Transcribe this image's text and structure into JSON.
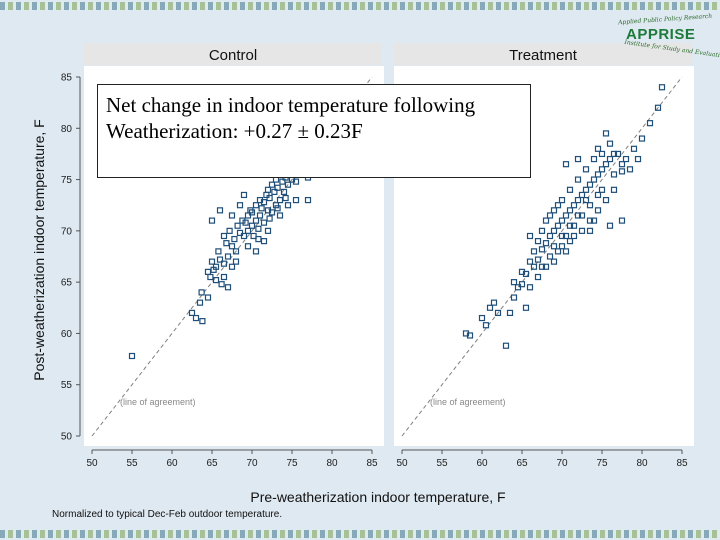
{
  "footnote": "Normalized to typical Dec-Feb outdoor temperature.",
  "logo": {
    "name": "APPRISE",
    "tagline_top": "Applied Public Policy Research",
    "tagline_bottom": "Institute for Study and Evaluation"
  },
  "callout": {
    "line1": "Net change in indoor temperature following",
    "line2": "Weatherization:  +0.27 ± 0.23F"
  },
  "colors": {
    "background": "#dfe9f1",
    "plot_area": "#ffffff",
    "panel_header": "#e6e6e6",
    "marker": "#1f4e79",
    "reference_line": "#7f7f7f",
    "logo_green": "#1e7a3a"
  },
  "chart_data": {
    "type": "scatter",
    "panels": [
      "Control",
      "Treatment"
    ],
    "xlabel": "Pre-weatherization indoor temperature, F",
    "ylabel": "Post-weatherization indoor temperature, F",
    "xlim": [
      50,
      85
    ],
    "ylim": [
      50,
      85
    ],
    "xticks": [
      50,
      55,
      60,
      65,
      70,
      75,
      80,
      85
    ],
    "yticks": [
      50,
      55,
      60,
      65,
      70,
      75,
      80,
      85
    ],
    "reference_line": {
      "label": "(line of agreement)",
      "slope": 1,
      "intercept": 0,
      "style": "dashed"
    },
    "grid": false,
    "marker": "hollow-square",
    "series": [
      {
        "name": "Control",
        "points": [
          [
            55.0,
            57.8
          ],
          [
            62.5,
            62.0
          ],
          [
            63.0,
            61.5
          ],
          [
            63.5,
            63.0
          ],
          [
            63.8,
            61.2
          ],
          [
            63.7,
            64.0
          ],
          [
            64.5,
            63.5
          ],
          [
            64.8,
            65.5
          ],
          [
            65.2,
            66.2
          ],
          [
            65.0,
            67.0
          ],
          [
            65.5,
            65.2
          ],
          [
            65.5,
            66.5
          ],
          [
            65.8,
            68.0
          ],
          [
            66.0,
            67.2
          ],
          [
            66.2,
            64.8
          ],
          [
            66.5,
            66.8
          ],
          [
            66.8,
            68.8
          ],
          [
            66.5,
            69.5
          ],
          [
            67.0,
            67.5
          ],
          [
            67.2,
            70.0
          ],
          [
            67.5,
            68.5
          ],
          [
            67.8,
            69.2
          ],
          [
            67.0,
            64.5
          ],
          [
            67.5,
            66.5
          ],
          [
            68.0,
            68.0
          ],
          [
            68.2,
            70.5
          ],
          [
            68.5,
            69.8
          ],
          [
            68.8,
            71.0
          ],
          [
            69.0,
            69.5
          ],
          [
            69.2,
            70.8
          ],
          [
            69.5,
            70.0
          ],
          [
            69.5,
            71.5
          ],
          [
            69.8,
            72.0
          ],
          [
            70.0,
            70.5
          ],
          [
            70.0,
            71.8
          ],
          [
            70.2,
            69.5
          ],
          [
            70.5,
            71.0
          ],
          [
            70.5,
            72.5
          ],
          [
            70.8,
            70.2
          ],
          [
            71.0,
            71.5
          ],
          [
            71.0,
            73.0
          ],
          [
            71.2,
            72.2
          ],
          [
            71.5,
            70.8
          ],
          [
            71.5,
            72.8
          ],
          [
            71.8,
            73.5
          ],
          [
            72.0,
            72.0
          ],
          [
            72.0,
            74.0
          ],
          [
            72.2,
            73.2
          ],
          [
            72.5,
            71.8
          ],
          [
            72.5,
            74.5
          ],
          [
            72.8,
            73.8
          ],
          [
            73.0,
            72.5
          ],
          [
            73.0,
            75.0
          ],
          [
            73.2,
            74.2
          ],
          [
            73.5,
            73.0
          ],
          [
            73.5,
            75.5
          ],
          [
            73.8,
            74.8
          ],
          [
            74.0,
            73.8
          ],
          [
            74.0,
            76.0
          ],
          [
            74.2,
            75.2
          ],
          [
            74.5,
            74.5
          ],
          [
            74.8,
            75.8
          ],
          [
            75.0,
            75.0
          ],
          [
            75.2,
            76.2
          ],
          [
            75.5,
            74.8
          ],
          [
            75.8,
            75.5
          ],
          [
            76.0,
            76.5
          ],
          [
            76.5,
            75.8
          ],
          [
            77.0,
            75.2
          ],
          [
            77.2,
            76.8
          ],
          [
            65.0,
            71.0
          ],
          [
            66.0,
            72.0
          ],
          [
            67.5,
            71.5
          ],
          [
            68.5,
            72.5
          ],
          [
            69.0,
            73.5
          ],
          [
            70.5,
            68.0
          ],
          [
            71.5,
            69.0
          ],
          [
            72.0,
            70.0
          ],
          [
            73.5,
            71.5
          ],
          [
            74.5,
            72.5
          ],
          [
            75.5,
            73.0
          ],
          [
            77.0,
            73.0
          ],
          [
            64.5,
            66.0
          ],
          [
            66.5,
            65.5
          ],
          [
            68.0,
            67.0
          ],
          [
            69.5,
            68.5
          ],
          [
            70.8,
            69.2
          ],
          [
            72.2,
            71.2
          ],
          [
            73.2,
            72.2
          ],
          [
            74.2,
            73.2
          ]
        ]
      },
      {
        "name": "Treatment",
        "points": [
          [
            58.0,
            60.0
          ],
          [
            58.5,
            59.8
          ],
          [
            60.0,
            61.5
          ],
          [
            60.5,
            60.8
          ],
          [
            61.0,
            62.5
          ],
          [
            61.5,
            63.0
          ],
          [
            62.0,
            62.0
          ],
          [
            63.0,
            58.8
          ],
          [
            63.5,
            62.0
          ],
          [
            64.0,
            63.5
          ],
          [
            64.5,
            64.5
          ],
          [
            65.0,
            64.8
          ],
          [
            65.0,
            66.0
          ],
          [
            65.5,
            65.8
          ],
          [
            66.0,
            67.0
          ],
          [
            66.5,
            66.5
          ],
          [
            66.5,
            68.0
          ],
          [
            67.0,
            67.2
          ],
          [
            67.0,
            69.0
          ],
          [
            67.5,
            68.2
          ],
          [
            67.5,
            70.0
          ],
          [
            68.0,
            68.8
          ],
          [
            68.0,
            71.0
          ],
          [
            68.5,
            69.5
          ],
          [
            68.5,
            71.5
          ],
          [
            69.0,
            70.0
          ],
          [
            69.0,
            72.0
          ],
          [
            69.5,
            70.5
          ],
          [
            69.5,
            72.5
          ],
          [
            70.0,
            71.0
          ],
          [
            70.0,
            73.0
          ],
          [
            70.5,
            71.5
          ],
          [
            70.5,
            69.5
          ],
          [
            71.0,
            72.0
          ],
          [
            71.0,
            74.0
          ],
          [
            71.5,
            72.5
          ],
          [
            71.5,
            70.5
          ],
          [
            72.0,
            73.0
          ],
          [
            72.0,
            75.0
          ],
          [
            72.5,
            73.5
          ],
          [
            72.5,
            71.5
          ],
          [
            73.0,
            74.0
          ],
          [
            73.0,
            76.0
          ],
          [
            73.5,
            74.5
          ],
          [
            73.5,
            72.5
          ],
          [
            74.0,
            75.0
          ],
          [
            74.0,
            77.0
          ],
          [
            74.5,
            75.5
          ],
          [
            74.5,
            73.5
          ],
          [
            75.0,
            76.0
          ],
          [
            75.0,
            74.0
          ],
          [
            75.5,
            76.5
          ],
          [
            76.0,
            77.0
          ],
          [
            76.5,
            75.5
          ],
          [
            77.0,
            77.5
          ],
          [
            77.5,
            75.8
          ],
          [
            78.0,
            77.0
          ],
          [
            79.0,
            78.0
          ],
          [
            81.0,
            80.5
          ],
          [
            82.0,
            82.0
          ],
          [
            82.5,
            84.0
          ],
          [
            80.0,
            79.0
          ],
          [
            76.0,
            78.5
          ],
          [
            75.5,
            79.5
          ],
          [
            74.5,
            78.0
          ],
          [
            72.0,
            77.0
          ],
          [
            70.5,
            76.5
          ],
          [
            77.5,
            71.0
          ],
          [
            76.0,
            70.5
          ],
          [
            74.0,
            71.0
          ],
          [
            73.5,
            70.0
          ],
          [
            71.0,
            69.0
          ],
          [
            70.0,
            68.5
          ],
          [
            69.0,
            67.0
          ],
          [
            68.0,
            66.5
          ],
          [
            67.0,
            65.5
          ],
          [
            66.0,
            64.5
          ],
          [
            65.5,
            62.5
          ],
          [
            64.0,
            65.0
          ],
          [
            66.0,
            69.5
          ],
          [
            67.5,
            66.5
          ],
          [
            68.5,
            67.5
          ],
          [
            69.5,
            68.0
          ],
          [
            70.5,
            68.0
          ],
          [
            71.5,
            69.5
          ],
          [
            72.5,
            70.0
          ],
          [
            73.5,
            71.0
          ],
          [
            74.5,
            72.0
          ],
          [
            75.5,
            73.0
          ],
          [
            76.5,
            74.0
          ],
          [
            77.5,
            76.5
          ],
          [
            78.5,
            76.0
          ],
          [
            79.5,
            77.0
          ],
          [
            76.5,
            77.5
          ],
          [
            75.0,
            77.5
          ],
          [
            73.0,
            73.0
          ],
          [
            72.0,
            71.5
          ],
          [
            71.0,
            70.5
          ],
          [
            70.0,
            69.5
          ],
          [
            69.0,
            68.5
          ]
        ]
      }
    ]
  }
}
